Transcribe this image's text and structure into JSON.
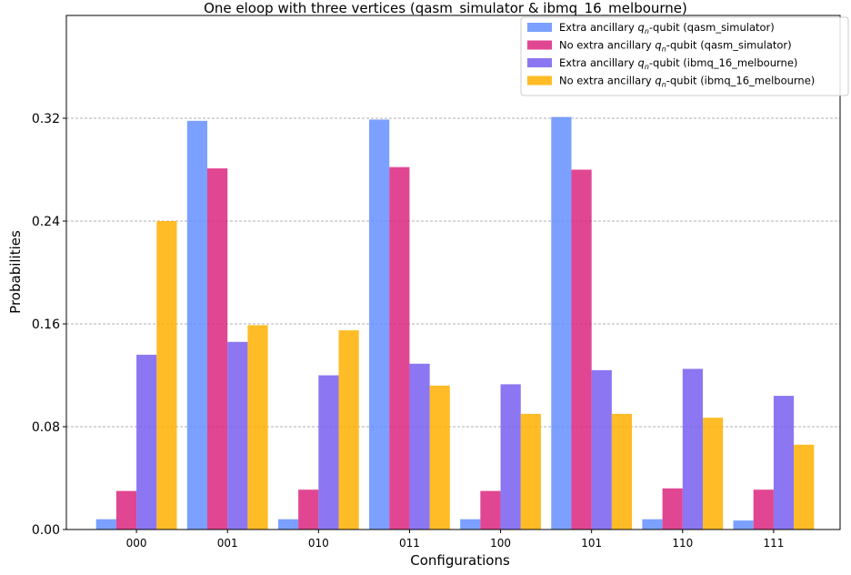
{
  "chart_data": {
    "type": "bar",
    "title": "One eloop with three vertices (qasm_simulator & ibmq_16_melbourne)",
    "xlabel": "Configurations",
    "ylabel": "Probabilities",
    "categories": [
      "000",
      "001",
      "010",
      "011",
      "100",
      "101",
      "110",
      "111"
    ],
    "ylim": [
      0,
      0.4
    ],
    "yticks": [
      "0.00",
      "0.08",
      "0.16",
      "0.24",
      "0.32"
    ],
    "grid": "y-dashed",
    "legend_position": "top-right",
    "series": [
      {
        "name_pre": "Extra ancillary ",
        "name_q": "q",
        "name_sub": "n",
        "name_post": "-qubit (qasm_simulator)",
        "color": "#648FFF",
        "values": [
          0.008,
          0.318,
          0.008,
          0.319,
          0.008,
          0.321,
          0.008,
          0.007
        ]
      },
      {
        "name_pre": "No extra ancillary ",
        "name_q": "q",
        "name_sub": "n",
        "name_post": "-qubit (qasm_simulator)",
        "color": "#DC267F",
        "values": [
          0.03,
          0.281,
          0.031,
          0.282,
          0.03,
          0.28,
          0.032,
          0.031
        ]
      },
      {
        "name_pre": "Extra ancillary ",
        "name_q": "q",
        "name_sub": "n",
        "name_post": "-qubit (ibmq_16_melbourne)",
        "color": "#785EF0",
        "values": [
          0.136,
          0.146,
          0.12,
          0.129,
          0.113,
          0.124,
          0.125,
          0.104
        ]
      },
      {
        "name_pre": "No extra ancillary ",
        "name_q": "q",
        "name_sub": "n",
        "name_post": "-qubit (ibmq_16_melbourne)",
        "color": "#FFB000",
        "values": [
          0.24,
          0.159,
          0.155,
          0.112,
          0.09,
          0.09,
          0.087,
          0.066
        ]
      }
    ]
  }
}
